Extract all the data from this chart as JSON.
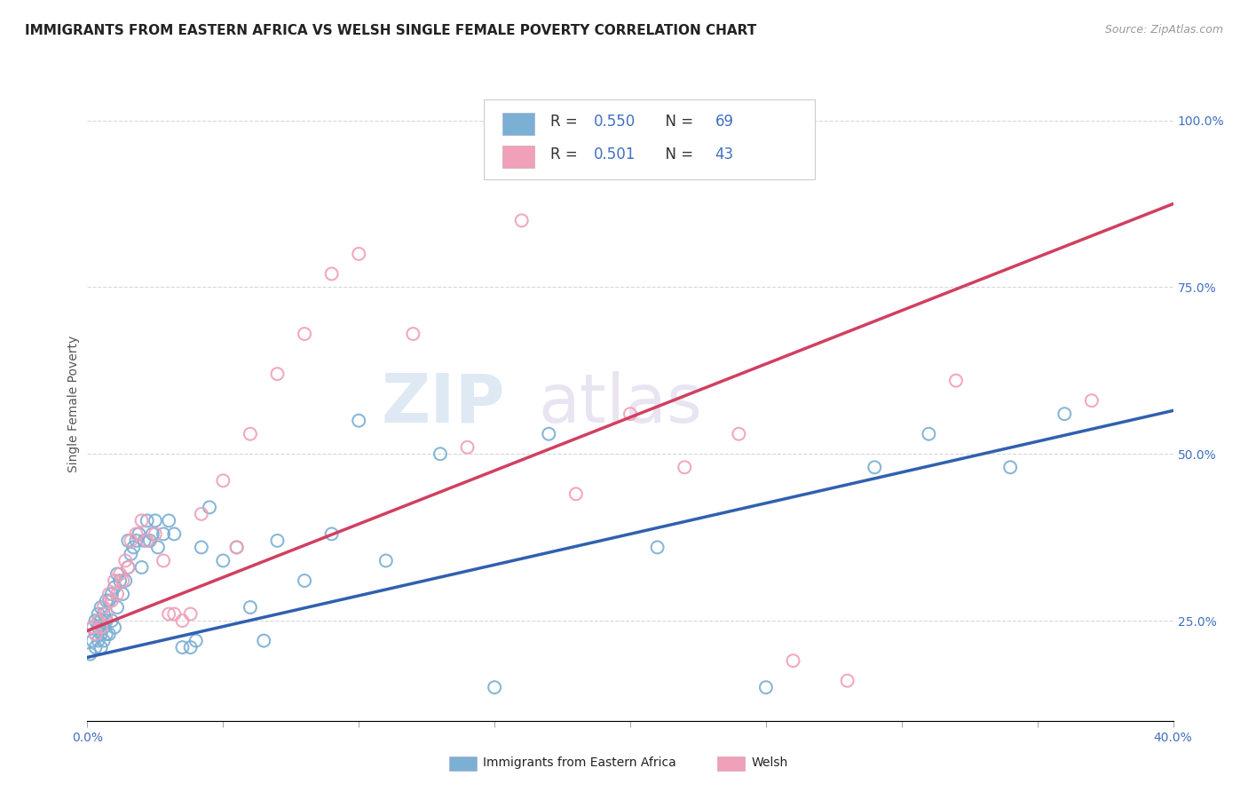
{
  "title": "IMMIGRANTS FROM EASTERN AFRICA VS WELSH SINGLE FEMALE POVERTY CORRELATION CHART",
  "source": "Source: ZipAtlas.com",
  "ylabel": "Single Female Poverty",
  "xlim": [
    0.0,
    0.4
  ],
  "ylim": [
    0.1,
    1.05
  ],
  "xtick_positions": [
    0.0,
    0.05,
    0.1,
    0.15,
    0.2,
    0.25,
    0.3,
    0.35,
    0.4
  ],
  "yticks_right": [
    0.25,
    0.5,
    0.75,
    1.0
  ],
  "yticklabels_right": [
    "25.0%",
    "50.0%",
    "75.0%",
    "100.0%"
  ],
  "blue_R": 0.55,
  "blue_N": 69,
  "pink_R": 0.501,
  "pink_N": 43,
  "blue_scatter_color": "#7bafd4",
  "pink_scatter_color": "#f0a0b8",
  "blue_line_color": "#3060b0",
  "pink_line_color": "#d04060",
  "legend_text_color": "#4070c0",
  "blue_scatter_x": [
    0.001,
    0.002,
    0.002,
    0.003,
    0.003,
    0.003,
    0.004,
    0.004,
    0.004,
    0.005,
    0.005,
    0.005,
    0.005,
    0.006,
    0.006,
    0.006,
    0.007,
    0.007,
    0.007,
    0.008,
    0.008,
    0.009,
    0.009,
    0.01,
    0.01,
    0.011,
    0.011,
    0.012,
    0.013,
    0.014,
    0.015,
    0.015,
    0.016,
    0.017,
    0.018,
    0.019,
    0.02,
    0.021,
    0.022,
    0.023,
    0.024,
    0.025,
    0.026,
    0.028,
    0.03,
    0.032,
    0.035,
    0.038,
    0.04,
    0.042,
    0.045,
    0.05,
    0.055,
    0.06,
    0.065,
    0.07,
    0.08,
    0.09,
    0.1,
    0.11,
    0.13,
    0.15,
    0.17,
    0.21,
    0.25,
    0.29,
    0.31,
    0.34,
    0.36
  ],
  "blue_scatter_y": [
    0.2,
    0.22,
    0.24,
    0.21,
    0.23,
    0.25,
    0.22,
    0.24,
    0.26,
    0.21,
    0.23,
    0.25,
    0.27,
    0.22,
    0.24,
    0.26,
    0.23,
    0.25,
    0.28,
    0.23,
    0.28,
    0.25,
    0.29,
    0.24,
    0.3,
    0.27,
    0.32,
    0.31,
    0.29,
    0.31,
    0.33,
    0.37,
    0.35,
    0.36,
    0.37,
    0.38,
    0.33,
    0.37,
    0.4,
    0.37,
    0.38,
    0.4,
    0.36,
    0.38,
    0.4,
    0.38,
    0.21,
    0.21,
    0.22,
    0.36,
    0.42,
    0.34,
    0.36,
    0.27,
    0.22,
    0.37,
    0.31,
    0.38,
    0.55,
    0.34,
    0.5,
    0.15,
    0.53,
    0.36,
    0.15,
    0.48,
    0.53,
    0.48,
    0.56
  ],
  "pink_scatter_x": [
    0.002,
    0.003,
    0.004,
    0.005,
    0.006,
    0.007,
    0.008,
    0.009,
    0.01,
    0.011,
    0.012,
    0.013,
    0.014,
    0.015,
    0.016,
    0.018,
    0.02,
    0.022,
    0.025,
    0.028,
    0.03,
    0.032,
    0.035,
    0.038,
    0.042,
    0.05,
    0.055,
    0.06,
    0.07,
    0.08,
    0.09,
    0.1,
    0.12,
    0.14,
    0.16,
    0.18,
    0.2,
    0.22,
    0.24,
    0.26,
    0.28,
    0.32,
    0.37
  ],
  "pink_scatter_y": [
    0.24,
    0.23,
    0.25,
    0.24,
    0.27,
    0.26,
    0.29,
    0.28,
    0.31,
    0.29,
    0.32,
    0.31,
    0.34,
    0.33,
    0.37,
    0.38,
    0.4,
    0.37,
    0.38,
    0.34,
    0.26,
    0.26,
    0.25,
    0.26,
    0.41,
    0.46,
    0.36,
    0.53,
    0.62,
    0.68,
    0.77,
    0.8,
    0.68,
    0.51,
    0.85,
    0.44,
    0.56,
    0.48,
    0.53,
    0.19,
    0.16,
    0.61,
    0.58
  ],
  "blue_trend_x": [
    0.0,
    0.4
  ],
  "blue_trend_y": [
    0.195,
    0.565
  ],
  "pink_trend_x": [
    0.0,
    0.4
  ],
  "pink_trend_y": [
    0.235,
    0.875
  ],
  "background_color": "#ffffff",
  "grid_color": "#d8d8d8",
  "title_fontsize": 11,
  "label_fontsize": 10,
  "tick_fontsize": 10,
  "legend_fontsize": 12
}
